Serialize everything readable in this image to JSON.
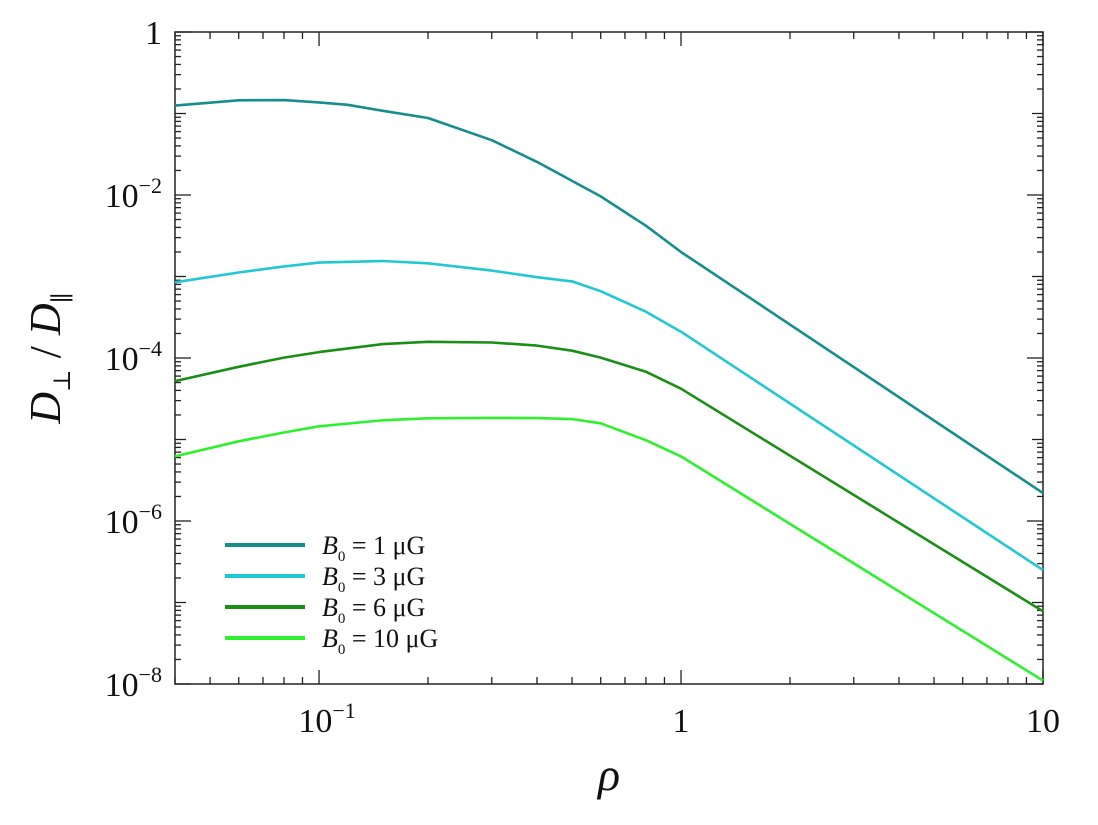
{
  "chart_data": {
    "type": "line",
    "x_scale": "log",
    "y_scale": "log",
    "xlim": [
      0.04,
      10
    ],
    "ylim": [
      1e-08,
      1
    ],
    "xlabel": "ρ",
    "ylabel_main": "D",
    "ylabel_sub1": "⊥",
    "ylabel_slash": " / ",
    "ylabel_sub2": "∥",
    "x_ticks": [
      {
        "value": 0.1,
        "base": "10",
        "exp": "−1"
      },
      {
        "value": 1,
        "base": "1",
        "exp": ""
      },
      {
        "value": 10,
        "base": "10",
        "exp": ""
      }
    ],
    "y_ticks": [
      {
        "value": 1,
        "base": "1",
        "exp": ""
      },
      {
        "value": 0.01,
        "base": "10",
        "exp": "−2"
      },
      {
        "value": 0.0001,
        "base": "10",
        "exp": "−4"
      },
      {
        "value": 1e-06,
        "base": "10",
        "exp": "−6"
      },
      {
        "value": 1e-08,
        "base": "10",
        "exp": "−8"
      }
    ],
    "grid": false,
    "legend_position": "bottom-left",
    "series": [
      {
        "legend_var": "B",
        "legend_sub": "0",
        "legend_rest": " = 1 μG",
        "color": "#168e8e",
        "points": [
          [
            0.04,
            0.125
          ],
          [
            0.06,
            0.145
          ],
          [
            0.08,
            0.146
          ],
          [
            0.1,
            0.137
          ],
          [
            0.12,
            0.128
          ],
          [
            0.15,
            0.108
          ],
          [
            0.2,
            0.088
          ],
          [
            0.3,
            0.047
          ],
          [
            0.4,
            0.0255
          ],
          [
            0.6,
            0.0096
          ],
          [
            0.8,
            0.0042
          ],
          [
            1,
            0.002
          ],
          [
            10,
            2.2e-06
          ]
        ]
      },
      {
        "legend_var": "B",
        "legend_sub": "0",
        "legend_rest": " = 3 μG",
        "color": "#22c8d0",
        "points": [
          [
            0.04,
            0.00085
          ],
          [
            0.06,
            0.00112
          ],
          [
            0.08,
            0.00133
          ],
          [
            0.1,
            0.00148
          ],
          [
            0.15,
            0.00155
          ],
          [
            0.2,
            0.00145
          ],
          [
            0.3,
            0.00118
          ],
          [
            0.4,
            0.00098
          ],
          [
            0.5,
            0.00087
          ],
          [
            0.6,
            0.00066
          ],
          [
            0.8,
            0.00037
          ],
          [
            1,
            0.00021
          ],
          [
            10,
            2.5e-07
          ]
        ]
      },
      {
        "legend_var": "B",
        "legend_sub": "0",
        "legend_rest": " = 6 μG",
        "color": "#1a8f16",
        "points": [
          [
            0.04,
            5.2e-05
          ],
          [
            0.06,
            7.8e-05
          ],
          [
            0.08,
            0.000101
          ],
          [
            0.1,
            0.000118
          ],
          [
            0.15,
            0.000148
          ],
          [
            0.2,
            0.000158
          ],
          [
            0.3,
            0.000155
          ],
          [
            0.4,
            0.000142
          ],
          [
            0.5,
            0.000123
          ],
          [
            0.6,
            0.000101
          ],
          [
            0.8,
            6.8e-05
          ],
          [
            1,
            4.2e-05
          ],
          [
            10,
            7.8e-08
          ]
        ]
      },
      {
        "legend_var": "B",
        "legend_sub": "0",
        "legend_rest": " = 10 μG",
        "color": "#2ef02e",
        "points": [
          [
            0.04,
            6.2e-06
          ],
          [
            0.06,
            9.5e-06
          ],
          [
            0.08,
            1.22e-05
          ],
          [
            0.1,
            1.45e-05
          ],
          [
            0.15,
            1.72e-05
          ],
          [
            0.2,
            1.82e-05
          ],
          [
            0.3,
            1.84e-05
          ],
          [
            0.4,
            1.83e-05
          ],
          [
            0.5,
            1.78e-05
          ],
          [
            0.6,
            1.58e-05
          ],
          [
            0.8,
            9.8e-06
          ],
          [
            1,
            6.2e-06
          ],
          [
            10,
            1.1e-08
          ]
        ]
      }
    ]
  }
}
